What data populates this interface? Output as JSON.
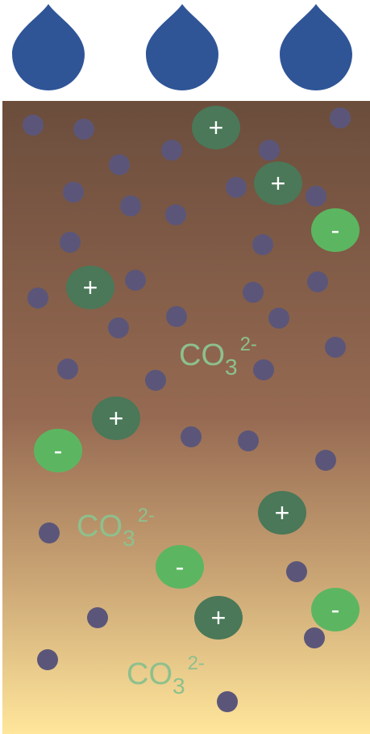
{
  "ions": [
    {
      "label": "+"
    },
    {
      "label": "+"
    },
    {
      "label": "+"
    },
    {
      "label": "+"
    },
    {
      "label": "+"
    },
    {
      "label": "+"
    },
    {
      "label": "-"
    },
    {
      "label": "-"
    },
    {
      "label": "-"
    },
    {
      "label": "-"
    }
  ],
  "carbonates": [
    {
      "formula": "CO",
      "subscript": "3",
      "charge": "2-"
    },
    {
      "formula": "CO",
      "subscript": "3",
      "charge": "2-"
    },
    {
      "formula": "CO",
      "subscript": "3",
      "charge": "2-"
    }
  ]
}
